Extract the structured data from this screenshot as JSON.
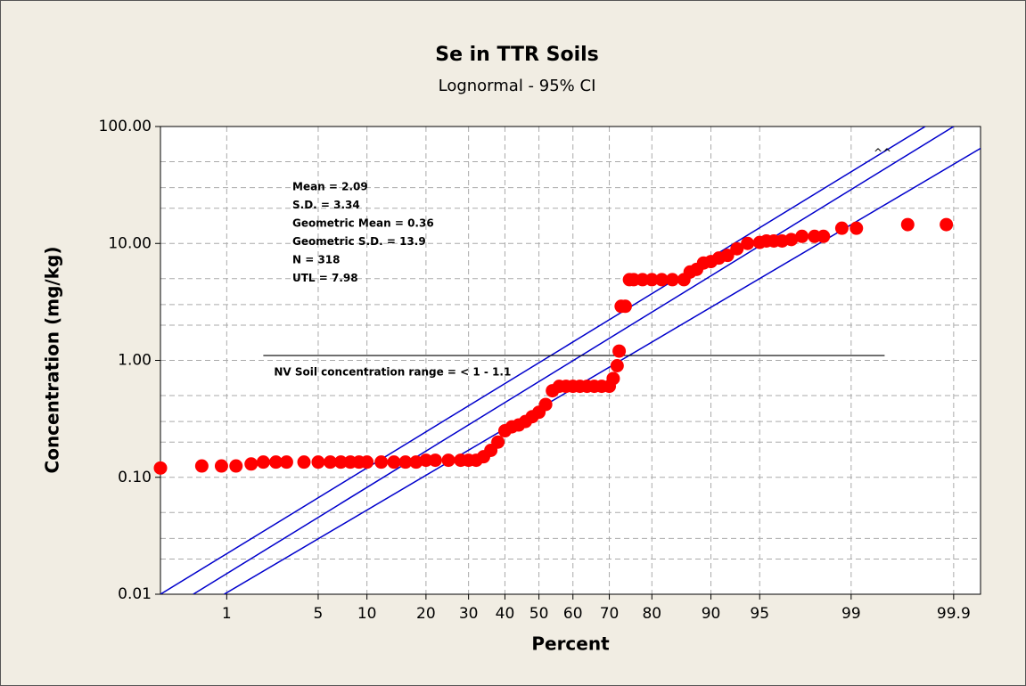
{
  "chart_data": {
    "type": "probability",
    "title": "Se in TTR Soils",
    "subtitle": "Lognormal - 95% CI",
    "xlabel": "Percent",
    "ylabel": "Concentration (mg/kg)",
    "xlim": [
      0.24,
      99.95
    ],
    "ylim": [
      0.01,
      100
    ],
    "xticks": [
      1,
      5,
      10,
      20,
      30,
      40,
      50,
      60,
      70,
      80,
      90,
      95,
      99,
      99.9
    ],
    "yticks": [
      {
        "value": 0.01,
        "label": "0.01"
      },
      {
        "value": 0.1,
        "label": "0.10"
      },
      {
        "value": 1,
        "label": "1.00"
      },
      {
        "value": 10,
        "label": "10.00"
      },
      {
        "value": 100,
        "label": "100.00"
      }
    ],
    "yminor_ticks": [
      0.02,
      0.03,
      0.05,
      0.2,
      0.3,
      0.5,
      2,
      3,
      5,
      20,
      30,
      50
    ],
    "y_log": true,
    "grid": true,
    "points": {
      "color": "#ff0000",
      "x": [
        0.24,
        0.6,
        0.9,
        1.2,
        1.6,
        2,
        2.5,
        3,
        4,
        5,
        6,
        7,
        8,
        9,
        10,
        12,
        14,
        16,
        18,
        20,
        22,
        25,
        28,
        30,
        32,
        34,
        36,
        38,
        40,
        42,
        44,
        46,
        48,
        50,
        52,
        54,
        56,
        58,
        60,
        62,
        64,
        66,
        68,
        70,
        71,
        72,
        72.5,
        73,
        74,
        75,
        76,
        78,
        80,
        82,
        84,
        86,
        87,
        88,
        89,
        90,
        91,
        92,
        93,
        94,
        95,
        95.5,
        96,
        96.5,
        97,
        97.5,
        98,
        98.3,
        98.8,
        99.1,
        99.7,
        99.88
      ],
      "values": [
        0.12,
        0.125,
        0.125,
        0.125,
        0.13,
        0.135,
        0.135,
        0.135,
        0.135,
        0.135,
        0.135,
        0.135,
        0.135,
        0.135,
        0.135,
        0.135,
        0.135,
        0.135,
        0.135,
        0.14,
        0.14,
        0.14,
        0.14,
        0.14,
        0.14,
        0.15,
        0.17,
        0.2,
        0.25,
        0.27,
        0.28,
        0.3,
        0.33,
        0.36,
        0.42,
        0.55,
        0.6,
        0.6,
        0.6,
        0.6,
        0.6,
        0.6,
        0.6,
        0.6,
        0.7,
        0.9,
        1.2,
        2.9,
        2.9,
        4.9,
        4.9,
        4.9,
        4.9,
        4.9,
        4.9,
        4.9,
        5.7,
        6,
        6.8,
        7,
        7.5,
        7.9,
        9,
        10,
        10.2,
        10.5,
        10.5,
        10.5,
        10.8,
        11.5,
        11.5,
        11.5,
        13.5,
        13.5,
        14.5,
        14.5
      ]
    },
    "lines": [
      {
        "color": "#0000cc",
        "x": [
          0.24,
          99.8
        ],
        "values": [
          0.01,
          100
        ]
      },
      {
        "color": "#0000cc",
        "x": [
          0.5,
          99.9
        ],
        "values": [
          0.01,
          100
        ]
      },
      {
        "color": "#0000cc",
        "x": [
          0.95,
          99.95
        ],
        "values": [
          0.01,
          65
        ]
      }
    ],
    "reference_line": {
      "color": "#000000",
      "x": [
        2,
        99.5
      ],
      "value": 1.1,
      "label": "NV Soil concentration range = < 1 - 1.1"
    },
    "stats": [
      "Mean = 2.09",
      "S.D. = 3.34",
      "Geometric Mean = 0.36",
      "Geometric S.D. = 13.9",
      "N = 318",
      "UTL = 7.98"
    ],
    "marker_note": "^^"
  }
}
